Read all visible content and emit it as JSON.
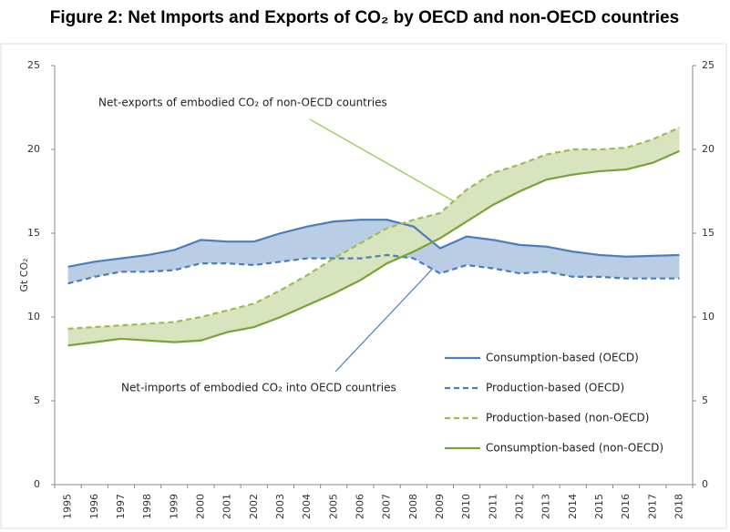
{
  "chart_data": {
    "type": "line",
    "title": "Figure 2: Net Imports and Exports of CO₂ by OECD and non-OECD countries",
    "ylabel": "Gt CO₂",
    "annotations": [
      "Net-exports of embodied CO₂ of non-OECD countries",
      "Net-imports of embodied CO₂ into OECD countries"
    ],
    "categories": [
      "1995",
      "1996",
      "1997",
      "1998",
      "1999",
      "2000",
      "2001",
      "2002",
      "2003",
      "2004",
      "2005",
      "2006",
      "2007",
      "2008",
      "2009",
      "2010",
      "2011",
      "2012",
      "2013",
      "2014",
      "2015",
      "2016",
      "2017",
      "2018"
    ],
    "series": [
      {
        "name": "Consumption-based (OECD)",
        "color": "#4a7ebb",
        "linestyle": "solid",
        "values": [
          13.0,
          13.3,
          13.5,
          13.7,
          14.0,
          14.6,
          14.5,
          14.5,
          15.0,
          15.4,
          15.7,
          15.8,
          15.8,
          15.4,
          14.1,
          14.8,
          14.6,
          14.3,
          14.2,
          13.9,
          13.7,
          13.6,
          13.65,
          13.7
        ]
      },
      {
        "name": "Production-based (OECD)",
        "color": "#4a7ebb",
        "linestyle": "dashed",
        "values": [
          12.0,
          12.4,
          12.7,
          12.7,
          12.8,
          13.2,
          13.2,
          13.1,
          13.3,
          13.5,
          13.5,
          13.5,
          13.7,
          13.5,
          12.6,
          13.1,
          12.9,
          12.6,
          12.7,
          12.4,
          12.4,
          12.3,
          12.3,
          12.3
        ]
      },
      {
        "name": "Production-based (non-OECD)",
        "color": "#9bbb59",
        "linestyle": "dashed",
        "values": [
          9.3,
          9.4,
          9.5,
          9.6,
          9.7,
          10.0,
          10.4,
          10.8,
          11.6,
          12.5,
          13.5,
          14.4,
          15.3,
          15.8,
          16.2,
          17.6,
          18.6,
          19.1,
          19.7,
          20.0,
          20.0,
          20.1,
          20.6,
          21.3
        ]
      },
      {
        "name": "Consumption-based (non-OECD)",
        "color": "#77a33a",
        "linestyle": "solid",
        "values": [
          8.3,
          8.5,
          8.7,
          8.6,
          8.5,
          8.6,
          9.1,
          9.4,
          10.0,
          10.7,
          11.4,
          12.2,
          13.2,
          13.9,
          14.7,
          15.7,
          16.7,
          17.5,
          18.2,
          18.5,
          18.7,
          18.8,
          19.2,
          19.9
        ]
      }
    ],
    "bands": [
      {
        "between": [
          0,
          1
        ],
        "color": "#b9cde5"
      },
      {
        "between": [
          2,
          3
        ],
        "color": "#d7e4bd"
      }
    ],
    "ylim": [
      0,
      25
    ],
    "yticks": [
      0,
      5,
      10,
      15,
      20,
      25
    ],
    "y2lim": [
      0,
      25
    ],
    "y2ticks": [
      0,
      5,
      10,
      15,
      20,
      25
    ]
  }
}
